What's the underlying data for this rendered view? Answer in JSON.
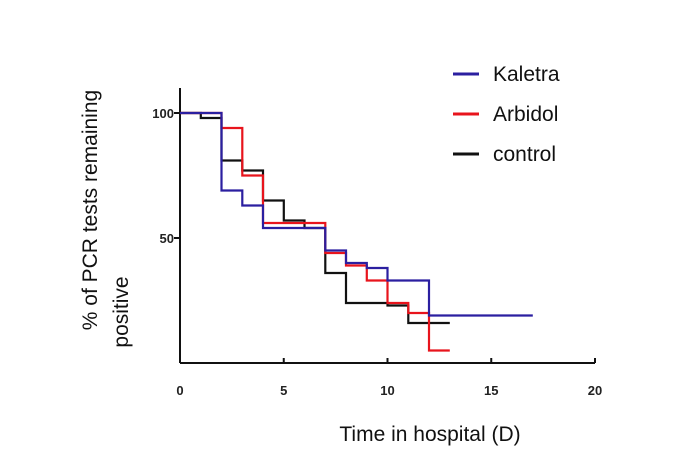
{
  "chart_data": {
    "type": "line",
    "subtype": "step",
    "xlabel": "Time in hospital (D)",
    "ylabel": [
      "% of PCR tests remaining",
      "positive"
    ],
    "xlim": [
      0,
      20
    ],
    "ylim": [
      0,
      100
    ],
    "xticks": [
      0,
      5,
      10,
      15,
      20
    ],
    "yticks": [
      50,
      100
    ],
    "grid": false,
    "legend_position": "top-right",
    "series": [
      {
        "name": "Kaletra",
        "color": "#2b1fa0",
        "x": [
          0,
          2,
          2,
          3,
          3,
          4,
          4,
          7,
          7,
          8,
          8,
          9,
          9,
          10,
          10,
          12,
          12,
          17
        ],
        "y": [
          100,
          100,
          69,
          69,
          63,
          63,
          54,
          54,
          45,
          45,
          40,
          40,
          38,
          38,
          33,
          33,
          19,
          19
        ]
      },
      {
        "name": "Arbidol",
        "color": "#e8141c",
        "x": [
          0,
          2,
          2,
          3,
          3,
          4,
          4,
          7,
          7,
          8,
          8,
          9,
          9,
          10,
          10,
          11,
          11,
          12,
          12,
          13
        ],
        "y": [
          100,
          100,
          94,
          94,
          75,
          75,
          56,
          56,
          44,
          44,
          39,
          39,
          33,
          33,
          24,
          24,
          20,
          20,
          5,
          5
        ]
      },
      {
        "name": "control",
        "color": "#111111",
        "x": [
          0,
          1,
          1,
          2,
          2,
          3,
          3,
          4,
          4,
          5,
          5,
          6,
          6,
          7,
          7,
          8,
          8,
          10,
          10,
          11,
          11,
          13
        ],
        "y": [
          100,
          100,
          98,
          98,
          81,
          81,
          77,
          77,
          65,
          65,
          57,
          57,
          54,
          54,
          36,
          36,
          24,
          24,
          23,
          23,
          16,
          16
        ]
      }
    ]
  }
}
